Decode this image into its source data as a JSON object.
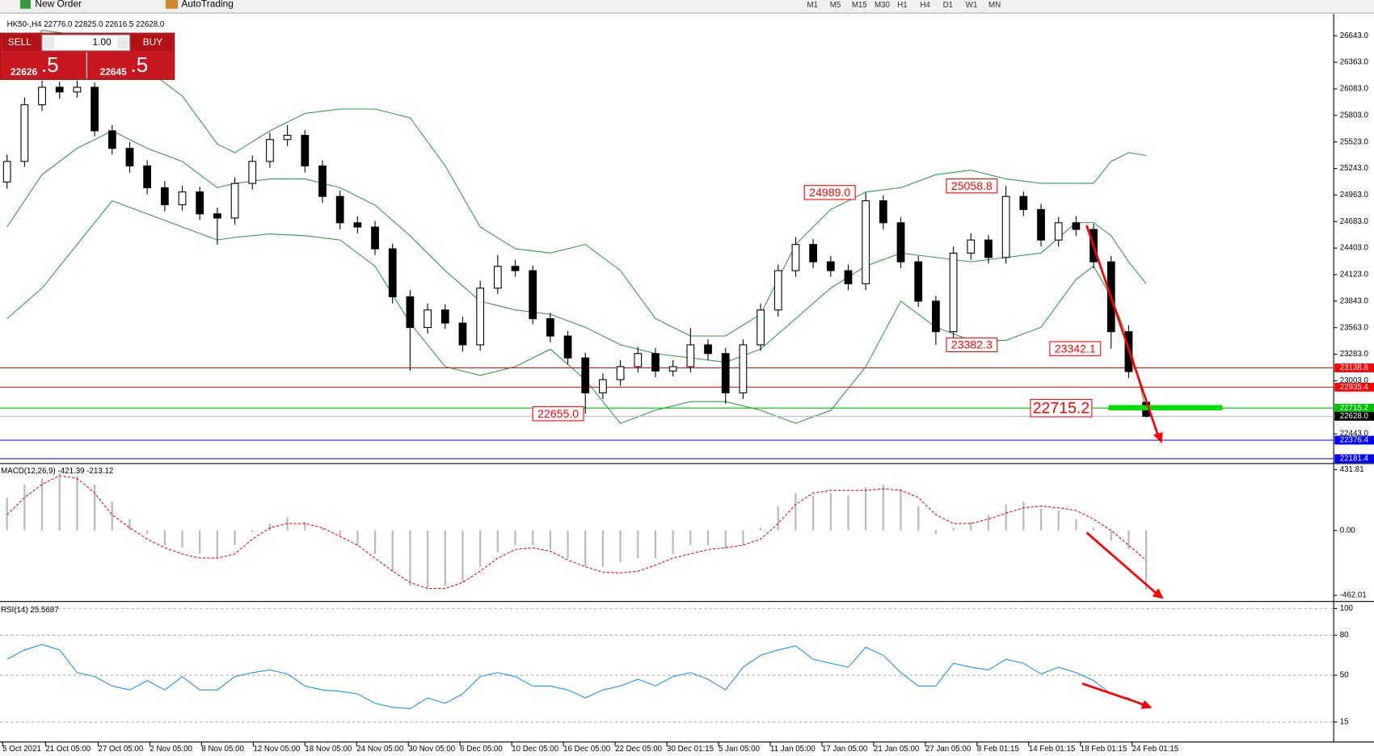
{
  "toolbar": {
    "new_order": "New Order",
    "auto_trading": "AutoTrading",
    "timeframes": [
      "M1",
      "M5",
      "M15",
      "M30",
      "H1",
      "H4",
      "D1",
      "W1",
      "MN"
    ]
  },
  "trade_panel": {
    "sell": "SELL",
    "buy": "BUY",
    "lots": "1.00",
    "sell_price": "22626",
    "sell_price_digit": ".5",
    "buy_price": "22645",
    "buy_price_digit": ".5"
  },
  "chart_data": [
    {
      "type": "candlestick",
      "title": "HK50-,H4 22776.0 22825.0 22616.5 22628.0",
      "candle_color": "#000000",
      "open": [
        25100,
        25317,
        25915,
        26100,
        26050,
        26100,
        25640,
        25455,
        25270,
        25040,
        24860,
        24995,
        24764,
        24720,
        25085,
        25317,
        25548,
        25593,
        25270,
        24948,
        24670,
        24625,
        24395,
        23890,
        23565,
        23750,
        23612,
        23382,
        23980,
        24210,
        24165,
        23658,
        23475,
        23244,
        22876,
        23015,
        23152,
        23290,
        23106,
        23152,
        23382,
        23290,
        22876,
        23382,
        23750,
        24165,
        24441,
        24258,
        24165,
        24027,
        24902,
        24670,
        24258,
        23843,
        23521,
        24350,
        24488,
        24304,
        24948,
        24810,
        24488,
        24670,
        24600,
        24258,
        23521,
        22776
      ],
      "high": [
        25390,
        25990,
        26170,
        26160,
        26170,
        26150,
        25700,
        25520,
        25330,
        25110,
        25060,
        25050,
        24830,
        25150,
        25380,
        25620,
        25700,
        25650,
        25330,
        25010,
        24740,
        24690,
        24450,
        23960,
        23820,
        23810,
        23680,
        24060,
        24330,
        24280,
        24220,
        23720,
        23530,
        23300,
        23080,
        23220,
        23360,
        23350,
        23220,
        23560,
        23440,
        23350,
        23440,
        23820,
        24230,
        24520,
        24500,
        24320,
        24230,
        24989,
        24960,
        24730,
        24320,
        23900,
        24420,
        24560,
        24540,
        25058.8,
        25000,
        24870,
        24730,
        24740,
        24660,
        24320,
        23590,
        22825
      ],
      "low": [
        25030,
        25260,
        25850,
        25980,
        25990,
        25580,
        25390,
        25200,
        24970,
        24790,
        24800,
        24700,
        24440,
        24650,
        25020,
        25250,
        25480,
        25200,
        24880,
        24600,
        24560,
        24330,
        23820,
        23110,
        23500,
        23550,
        23310,
        23320,
        23920,
        24100,
        23600,
        23410,
        23180,
        22655,
        22810,
        22950,
        23090,
        23040,
        23050,
        23090,
        23220,
        22760,
        22810,
        23320,
        23680,
        24100,
        24190,
        24100,
        23960,
        23960,
        24600,
        24190,
        23780,
        23382.3,
        23460,
        24280,
        24240,
        24240,
        24740,
        24420,
        24420,
        24530,
        24190,
        23342.1,
        23030,
        22616.5
      ],
      "close": [
        25317,
        25915,
        26100,
        26050,
        26100,
        25640,
        25455,
        25270,
        25040,
        24860,
        24995,
        24764,
        24720,
        25085,
        25317,
        25548,
        25593,
        25270,
        24948,
        24670,
        24625,
        24395,
        23890,
        23565,
        23750,
        23612,
        23382,
        23980,
        24210,
        24165,
        23658,
        23475,
        23244,
        22876,
        23015,
        23152,
        23290,
        23106,
        23152,
        23382,
        23290,
        22876,
        23382,
        23750,
        24165,
        24441,
        24258,
        24165,
        24027,
        24902,
        24670,
        24258,
        23843,
        23521,
        24350,
        24488,
        24304,
        24948,
        24810,
        24488,
        24670,
        24600,
        24258,
        23521,
        23100,
        22628
      ],
      "bands": {
        "color": "#2e9e44",
        "x": [
          0,
          2,
          4,
          6,
          8,
          10,
          12,
          13,
          15,
          17,
          19,
          21,
          23,
          25,
          27,
          29,
          31,
          33,
          35,
          37,
          39,
          41,
          43,
          45,
          47,
          49,
          51,
          53,
          55,
          57,
          59,
          61,
          62,
          63,
          64,
          65
        ],
        "upper": [
          26238,
          26700,
          26652,
          26376,
          26284,
          26007,
          25501,
          25409,
          25640,
          25824,
          25870,
          25870,
          25778,
          25271,
          24626,
          24396,
          24350,
          24442,
          24166,
          23659,
          23475,
          23475,
          23705,
          24442,
          24810,
          24994,
          25040,
          25178,
          25225,
          25132,
          25086,
          25086,
          25086,
          25317,
          25409,
          25380
        ],
        "middle": [
          24626,
          25178,
          25455,
          25640,
          25455,
          25317,
          25040,
          25086,
          25132,
          25132,
          25040,
          24856,
          24534,
          24165,
          23843,
          23751,
          23705,
          23567,
          23383,
          23290,
          23244,
          23198,
          23336,
          23659,
          23981,
          24212,
          24350,
          24304,
          24258,
          24304,
          24350,
          24672,
          24672,
          24534,
          24258,
          24028
        ],
        "lower": [
          23659,
          23980,
          24441,
          24902,
          24764,
          24626,
          24488,
          24516,
          24552,
          24534,
          24488,
          24212,
          23613,
          23152,
          23060,
          23152,
          23336,
          23014,
          22554,
          22692,
          22784,
          22784,
          22692,
          22554,
          22692,
          23152,
          23843,
          23567,
          23429,
          23429,
          23567,
          24074,
          24212,
          23889,
          23429,
          22692
        ]
      },
      "xlim": [
        -0.4,
        75.7
      ],
      "xticks": [
        {
          "value": -0.25,
          "label": "5 Oct 2021"
        },
        {
          "value": 2.2,
          "label": "21 Oct 05:00"
        },
        {
          "value": 5.2,
          "label": "27 Oct 05:00"
        },
        {
          "value": 8.15,
          "label": "2 Nov 05:00"
        },
        {
          "value": 11.1,
          "label": "8 Nov 05:00"
        },
        {
          "value": 14.05,
          "label": "12 Nov 05:00"
        },
        {
          "value": 17,
          "label": "18 Nov 05:00"
        },
        {
          "value": 19.95,
          "label": "24 Nov 05:00"
        },
        {
          "value": 22.9,
          "label": "30 Nov 05:00"
        },
        {
          "value": 25.85,
          "label": "6 Dec 05:00"
        },
        {
          "value": 28.8,
          "label": "10 Dec 05:00"
        },
        {
          "value": 31.75,
          "label": "16 Dec 05:00"
        },
        {
          "value": 34.7,
          "label": "22 Dec 05:00"
        },
        {
          "value": 37.65,
          "label": "30 Dec 01:15"
        },
        {
          "value": 40.6,
          "label": "5 Jan 05:00"
        },
        {
          "value": 43.55,
          "label": "11 Jan 05:00"
        },
        {
          "value": 46.5,
          "label": "17 Jan 05:00"
        },
        {
          "value": 49.45,
          "label": "21 Jan 05:00"
        },
        {
          "value": 52.4,
          "label": "27 Jan 05:00"
        },
        {
          "value": 55.35,
          "label": "8 Feb 01:15"
        },
        {
          "value": 58.3,
          "label": "14 Feb 01:15"
        },
        {
          "value": 61.25,
          "label": "18 Feb 01:15"
        },
        {
          "value": 64.2,
          "label": "24 Feb 01:15"
        }
      ],
      "ylim": [
        22139,
        26836
      ],
      "yticks": [
        {
          "value": 26643,
          "label": "26643.0"
        },
        {
          "value": 26363,
          "label": "26363.0"
        },
        {
          "value": 26083,
          "label": "26083.0"
        },
        {
          "value": 25803,
          "label": "25803.0"
        },
        {
          "value": 25523,
          "label": "25523.0"
        },
        {
          "value": 25243,
          "label": "25243.0"
        },
        {
          "value": 24963,
          "label": "24963.0"
        },
        {
          "value": 24683,
          "label": "24683.0"
        },
        {
          "value": 24403,
          "label": "24403.0"
        },
        {
          "value": 24123,
          "label": "24123.0"
        },
        {
          "value": 23843,
          "label": "23843.0"
        },
        {
          "value": 23563,
          "label": "23563.0"
        },
        {
          "value": 23283,
          "label": "23283.0"
        },
        {
          "value": 23003,
          "label": "23003.0"
        },
        {
          "value": 22443,
          "label": "22443.0"
        }
      ],
      "levels": [
        {
          "value": 23138.8,
          "label": "23138.8",
          "color": "#ff0000"
        },
        {
          "value": 22935.4,
          "label": "22935.4",
          "color": "#ff0000"
        },
        {
          "value": 22715.2,
          "label": "22715.2",
          "color": "#00c000"
        },
        {
          "value": 22628.0,
          "label": "22628.0",
          "color": "#000000"
        },
        {
          "value": 22376.4,
          "label": "22376.4",
          "color": "#0000ff"
        },
        {
          "value": 22181.4,
          "label": "22181.4",
          "color": "#0000ff"
        }
      ],
      "annotations": [
        {
          "value": 24989.0,
          "label": "24989.0"
        },
        {
          "value": 25058.8,
          "label": "25058.8"
        },
        {
          "value": 22655.0,
          "label": "22655.0"
        },
        {
          "value": 23382.3,
          "label": "23382.3"
        },
        {
          "value": 23342.1,
          "label": "23342.1"
        },
        {
          "value": 22715.2,
          "label": "22715.2"
        }
      ]
    },
    {
      "type": "macd",
      "title": "MACD(12,26,9) -421.39 -213.12",
      "histogram": {
        "color": "#b8b8b8",
        "values": [
          234,
          327,
          370,
          407,
          389,
          327,
          204,
          80,
          -25,
          -105,
          -123,
          -167,
          -197,
          -105,
          -12,
          49,
          93,
          62,
          19,
          -43,
          -105,
          -167,
          -290,
          -395,
          -413,
          -395,
          -370,
          -259,
          -154,
          -105,
          -105,
          -136,
          -197,
          -259,
          -259,
          -228,
          -197,
          -197,
          -167,
          -105,
          -105,
          -136,
          -105,
          19,
          173,
          265,
          247,
          265,
          247,
          309,
          327,
          296,
          173,
          -25,
          19,
          62,
          111,
          185,
          204,
          154,
          142,
          80,
          19,
          -74,
          -136,
          -421.39
        ]
      },
      "signal": {
        "color": "#ff0000",
        "values": [
          111,
          234,
          327,
          389,
          370,
          265,
          111,
          19,
          -62,
          -123,
          -167,
          -197,
          -197,
          -167,
          -62,
          19,
          49,
          49,
          19,
          -43,
          -105,
          -197,
          -290,
          -370,
          -413,
          -413,
          -370,
          -290,
          -197,
          -136,
          -123,
          -148,
          -210,
          -259,
          -296,
          -302,
          -290,
          -247,
          -197,
          -167,
          -136,
          -123,
          -105,
          -62,
          49,
          185,
          265,
          284,
          284,
          284,
          296,
          284,
          234,
          111,
          49,
          49,
          80,
          123,
          160,
          173,
          160,
          142,
          80,
          0,
          -105,
          -213.12
        ]
      },
      "ylim": [
        -499,
        463
      ],
      "yticks": [
        {
          "value": 431.81,
          "label": "431.81"
        },
        {
          "value": 0,
          "label": "0.00"
        },
        {
          "value": -462.01,
          "label": "-462.01"
        }
      ]
    },
    {
      "type": "line",
      "title": "RSI(14) 25.5687",
      "color": "#1e90ff",
      "values": [
        62,
        69,
        73,
        69,
        52,
        49,
        42,
        39,
        46,
        39,
        49,
        39,
        39,
        49,
        52,
        54,
        51,
        42,
        39,
        38,
        36,
        29,
        26,
        25,
        33,
        29,
        36,
        49,
        52,
        49,
        42,
        42,
        39,
        33,
        39,
        42,
        47,
        42,
        49,
        52,
        47,
        39,
        56,
        65,
        69,
        72,
        62,
        59,
        56,
        71,
        65,
        52,
        42,
        42,
        59,
        56,
        54,
        62,
        59,
        51,
        56,
        52,
        46,
        36,
        33,
        25.5687
      ],
      "ylim": [
        0,
        104.6
      ],
      "yticks": [
        100,
        80,
        50,
        15
      ],
      "grid": true
    }
  ]
}
